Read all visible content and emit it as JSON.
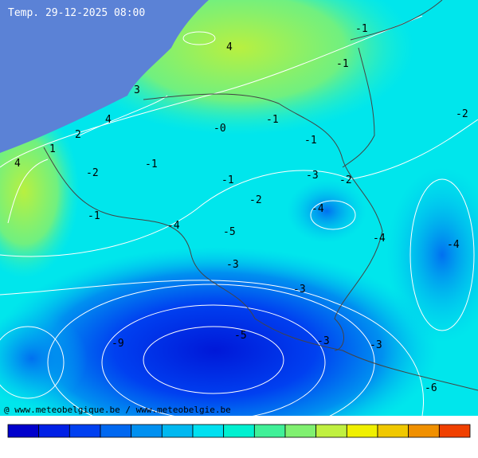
{
  "header": {
    "title": "Temp. 29-12-2025 08:00"
  },
  "contour_labels": [
    "4",
    "-1",
    "-1",
    "3",
    "4",
    "2",
    "-0",
    "-1",
    "-2",
    "1",
    "4",
    "-1",
    "-2",
    "-1",
    "-3",
    "-2",
    "-1",
    "-2",
    "-1",
    "-4",
    "-4",
    "-5",
    "-4",
    "-4",
    "-3",
    "-3",
    "-9",
    "-5",
    "-3",
    "-3",
    "-6"
  ],
  "footer": {
    "credit": "@ www.meteobelgique.be / www.meteobelgie.be"
  }
}
